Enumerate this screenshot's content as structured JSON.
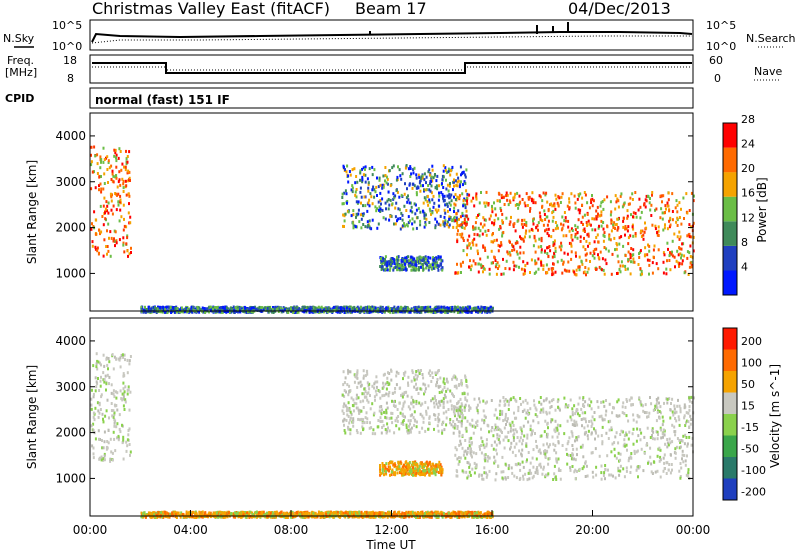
{
  "header": {
    "title": "Christmas Valley East (fitACF)",
    "beam": "Beam 17",
    "date": "04/Dec/2013"
  },
  "top_panel": {
    "left_label": "N.Sky",
    "right_label": "N.Search",
    "left_ticks": [
      "10^5",
      "10^0"
    ],
    "right_ticks": [
      "10^5",
      "10^0"
    ]
  },
  "freq_panel": {
    "left_label_1": "Freq.",
    "left_label_2": "[MHz]",
    "right_label": "Nave",
    "left_ticks": [
      "18",
      "8"
    ],
    "right_ticks": [
      "60",
      "0"
    ]
  },
  "cpid_panel": {
    "label": "CPID",
    "text": "normal (fast) 151 IF"
  },
  "chart_data": [
    {
      "type": "heatmap",
      "panel": "power",
      "ylabel": "Slant Range [km]",
      "yticks": [
        1000,
        2000,
        3000,
        4000
      ],
      "ylim": [
        180,
        4500
      ],
      "xlim": [
        0,
        24
      ],
      "colorbar": {
        "label": "Power [dB]",
        "ticks": [
          "4",
          "8",
          "12",
          "16",
          "20",
          "24",
          "28"
        ],
        "colors": [
          "#0018ff",
          "#2040c0",
          "#3f8a5a",
          "#6abd45",
          "#f5a300",
          "#ff6a00",
          "#ff0000"
        ]
      },
      "regions": [
        {
          "name": "morning-echo",
          "x": [
            0.0,
            1.6
          ],
          "y": [
            1400,
            3800
          ],
          "level": "high"
        },
        {
          "name": "midday-cloud",
          "x": [
            10.0,
            15.0
          ],
          "y": [
            2000,
            3400
          ],
          "level": "medium"
        },
        {
          "name": "low-band",
          "x": [
            11.5,
            14.0
          ],
          "y": [
            1100,
            1400
          ],
          "level": "low"
        },
        {
          "name": "evening-band",
          "x": [
            14.5,
            24.0
          ],
          "y": [
            1000,
            2800
          ],
          "level": "high"
        },
        {
          "name": "ground-scatter-floor",
          "x": [
            2.0,
            16.0
          ],
          "y": [
            180,
            300
          ],
          "level": "low"
        }
      ]
    },
    {
      "type": "heatmap",
      "panel": "velocity",
      "ylabel": "Slant Range [km]",
      "yticks": [
        1000,
        2000,
        3000,
        4000
      ],
      "ylim": [
        180,
        4500
      ],
      "xlim": [
        0,
        24
      ],
      "colorbar": {
        "label": "Velocity [m s^-1]",
        "ticks": [
          "200",
          "100",
          "50",
          "15",
          "-15",
          "-50",
          "-100",
          "-200"
        ],
        "colors": [
          "#1f3fbf",
          "#2a7a6a",
          "#3aa64a",
          "#8ad14c",
          "#c8c8c0",
          "#f5a300",
          "#ff6a00",
          "#ff1a00"
        ]
      },
      "regions": [
        {
          "name": "morning-echo",
          "x": [
            0.0,
            1.6
          ],
          "y": [
            1400,
            3800
          ],
          "level": "gray"
        },
        {
          "name": "midday-cloud",
          "x": [
            10.0,
            15.0
          ],
          "y": [
            2000,
            3400
          ],
          "level": "gray"
        },
        {
          "name": "low-band",
          "x": [
            11.5,
            14.0
          ],
          "y": [
            1100,
            1400
          ],
          "level": "orange"
        },
        {
          "name": "evening-band",
          "x": [
            14.5,
            24.0
          ],
          "y": [
            1000,
            2800
          ],
          "level": "gray"
        },
        {
          "name": "ground-scatter-floor",
          "x": [
            2.0,
            16.0
          ],
          "y": [
            180,
            300
          ],
          "level": "orange"
        }
      ]
    }
  ],
  "x_axis": {
    "label": "Time UT",
    "ticks": [
      "00:00",
      "04:00",
      "08:00",
      "12:00",
      "16:00",
      "20:00",
      "00:00"
    ]
  }
}
